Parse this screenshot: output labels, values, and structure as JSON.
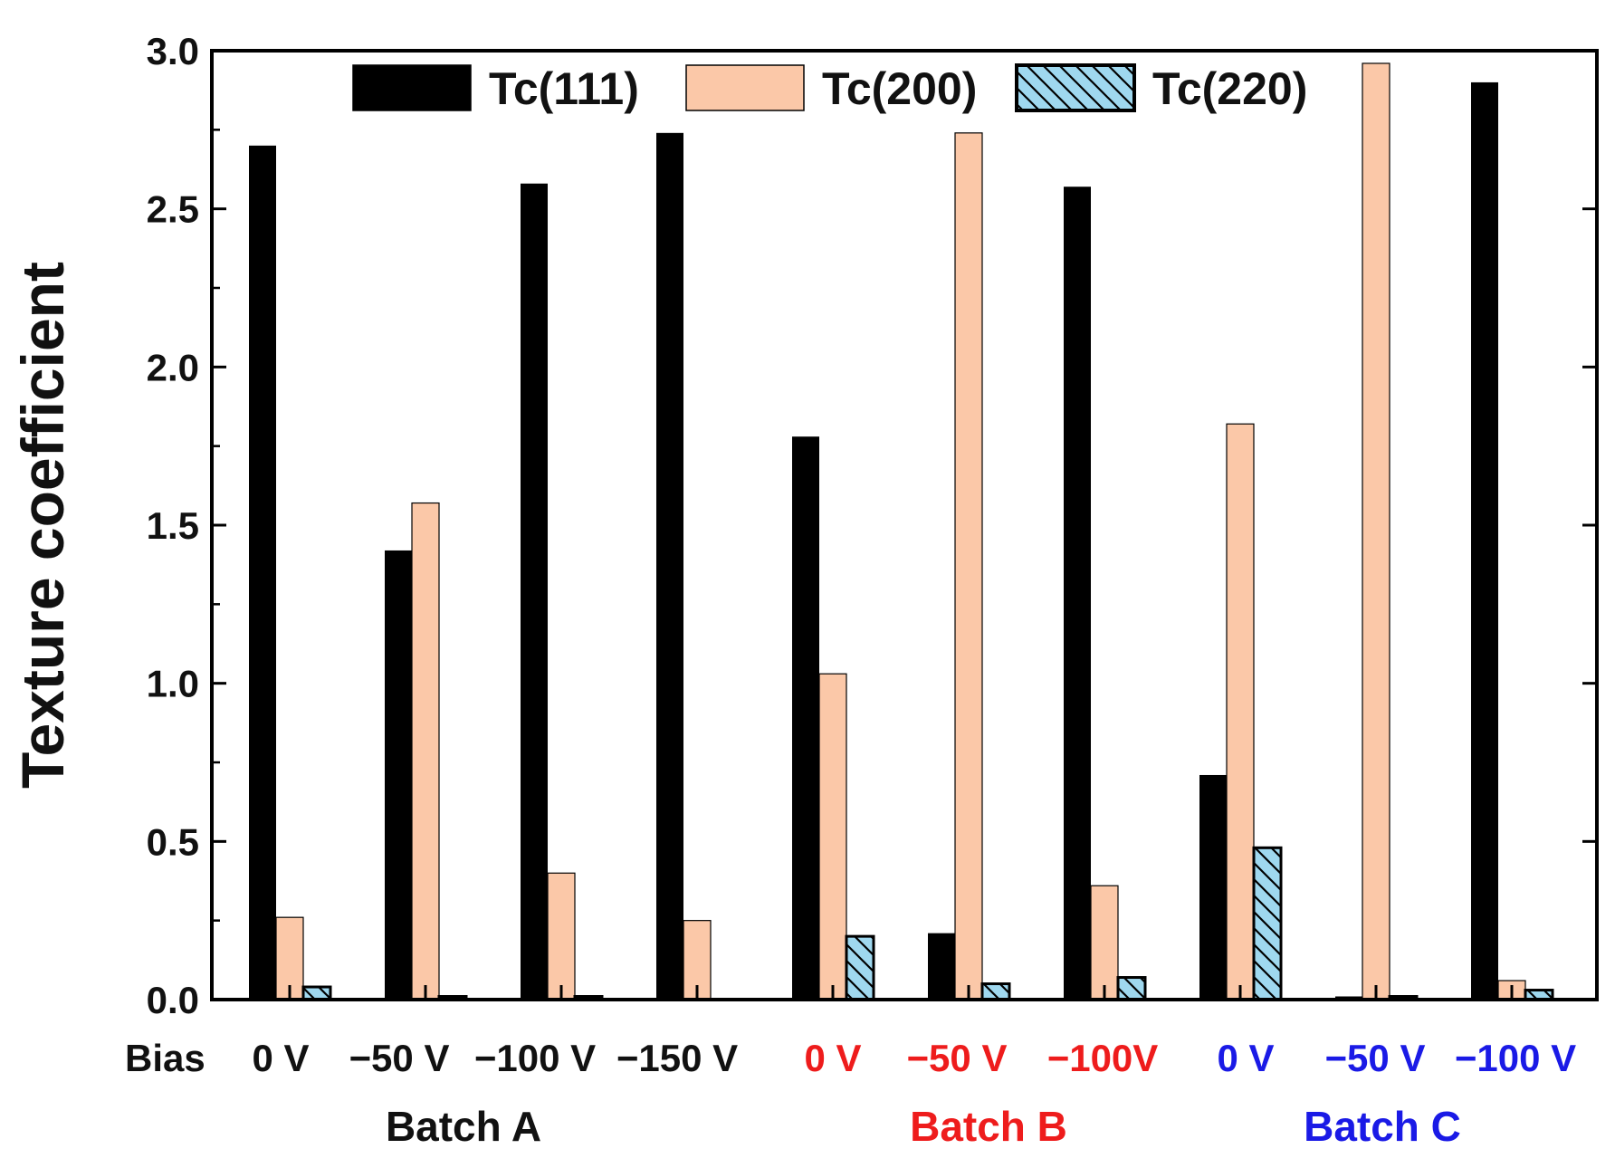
{
  "chart_data": {
    "type": "bar",
    "title": "",
    "xlabel": "",
    "ylabel": "Texture coefficient",
    "ylim": [
      0,
      3.0
    ],
    "yticks": [
      "0.0",
      "0.5",
      "1.0",
      "1.5",
      "2.0",
      "2.5",
      "3.0"
    ],
    "grid": false,
    "legend_position": "top",
    "bias_prefix": "Bias",
    "categories": [
      {
        "label": "0 V",
        "batch": "A"
      },
      {
        "label": "−50 V",
        "batch": "A"
      },
      {
        "label": "−100 V",
        "batch": "A"
      },
      {
        "label": "−150 V",
        "batch": "A"
      },
      {
        "label": "0 V",
        "batch": "B"
      },
      {
        "label": "−50 V",
        "batch": "B"
      },
      {
        "label": "−100V",
        "batch": "B"
      },
      {
        "label": "0 V",
        "batch": "C"
      },
      {
        "label": "−50 V",
        "batch": "C"
      },
      {
        "label": "−100 V",
        "batch": "C"
      }
    ],
    "series": [
      {
        "name": "Tc(111)",
        "color": "#000000",
        "values": [
          2.7,
          1.42,
          2.58,
          2.74,
          1.78,
          0.21,
          2.57,
          0.71,
          0.01,
          2.9
        ]
      },
      {
        "name": "Tc(200)",
        "color": "#fbc8a8",
        "values": [
          0.26,
          1.57,
          0.4,
          0.25,
          1.03,
          2.74,
          0.36,
          1.82,
          2.96,
          0.06
        ]
      },
      {
        "name": "Tc(220)",
        "color": "#9fd8ef",
        "hatch": true,
        "values": [
          0.04,
          0.01,
          0.01,
          0.0,
          0.2,
          0.05,
          0.07,
          0.48,
          0.01,
          0.03
        ]
      }
    ],
    "batches": [
      {
        "id": "A",
        "name": "Batch A",
        "color": "#111111"
      },
      {
        "id": "B",
        "name": "Batch B",
        "color": "#ee1c1c"
      },
      {
        "id": "C",
        "name": "Batch C",
        "color": "#1a1ae6"
      }
    ]
  }
}
